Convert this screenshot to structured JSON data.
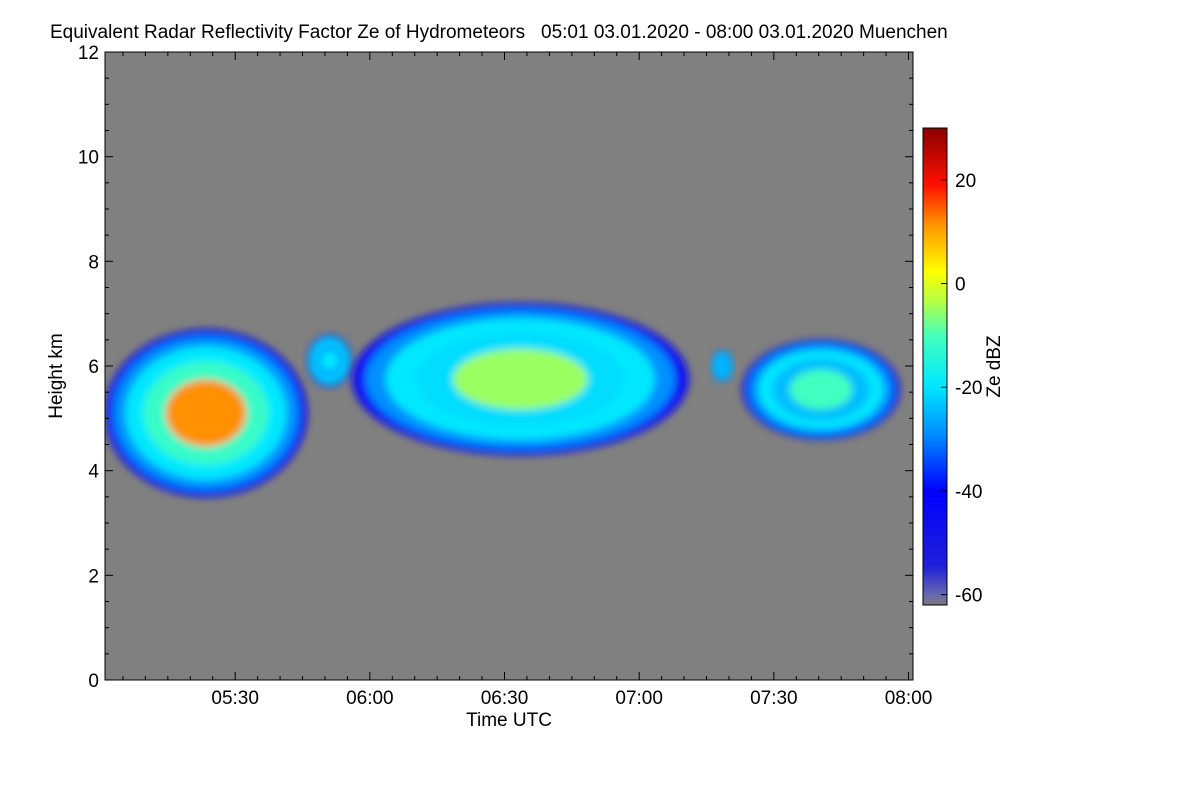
{
  "chart_data": {
    "type": "heatmap",
    "title": "Equivalent Radar Reflectivity Factor Ze of Hydrometeors   05:01 03.01.2020 - 08:00 03.01.2020 Muenchen",
    "xlabel": "Time UTC",
    "ylabel": "Height km",
    "x_ticks": [
      "05:30",
      "06:00",
      "06:30",
      "07:00",
      "07:30",
      "08:00"
    ],
    "x_tick_minutes": [
      29,
      59,
      89,
      119,
      149,
      179
    ],
    "xlim_minutes": [
      0,
      180
    ],
    "ylim": [
      0,
      12
    ],
    "y_ticks": [
      0,
      2,
      4,
      6,
      8,
      10,
      12
    ],
    "colorbar": {
      "label": "Ze dBZ",
      "range": [
        -62,
        30
      ],
      "ticks": [
        -60,
        -40,
        -20,
        0,
        20
      ]
    },
    "background_color": "#808080",
    "echo_regions": [
      {
        "t_start": 0,
        "t_end": 45,
        "base_km": 3.5,
        "top_km": 6.7,
        "peak_dbz": 8
      },
      {
        "t_start": 45,
        "t_end": 55,
        "base_km": 5.6,
        "top_km": 6.6,
        "peak_dbz": -22
      },
      {
        "t_start": 55,
        "t_end": 130,
        "base_km": 4.3,
        "top_km": 7.2,
        "peak_dbz": -8
      },
      {
        "t_start": 135,
        "t_end": 140,
        "base_km": 5.7,
        "top_km": 6.3,
        "peak_dbz": -25
      },
      {
        "t_start": 142,
        "t_end": 177,
        "base_km": 4.6,
        "top_km": 6.5,
        "peak_dbz": -14
      }
    ]
  }
}
